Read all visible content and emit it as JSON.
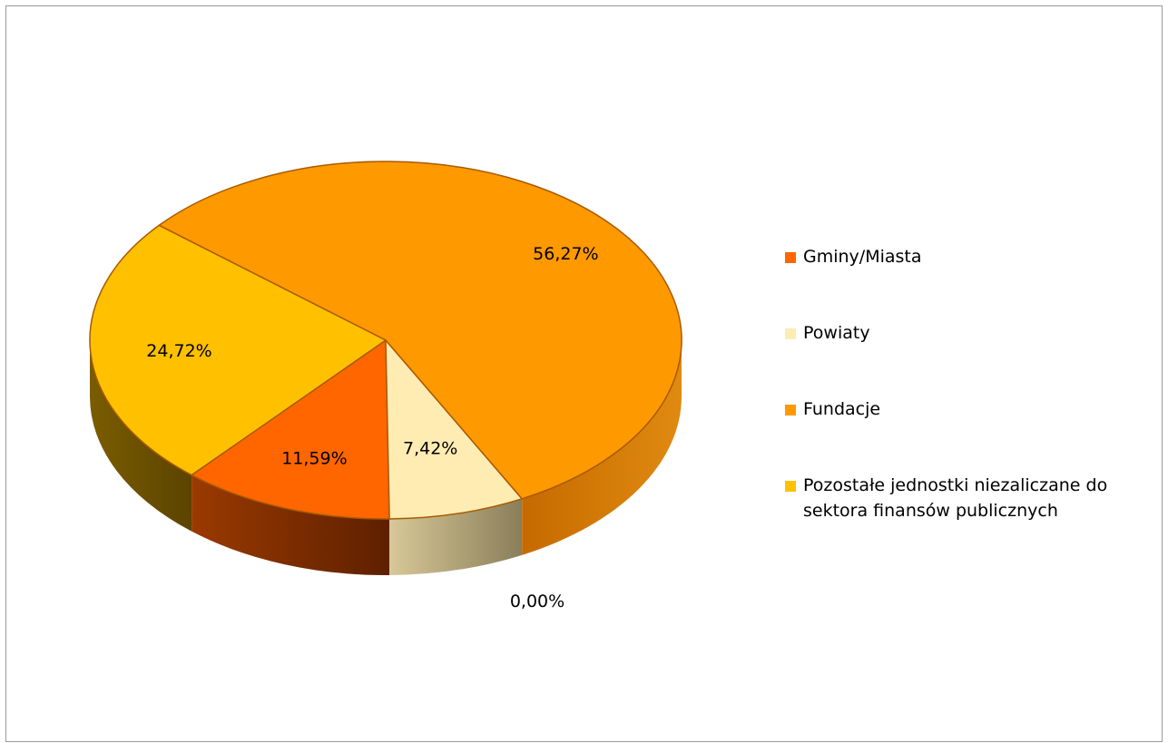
{
  "chart_data": {
    "type": "pie",
    "categories": [
      "Gminy/Miasta",
      "Powiaty",
      "Fundacje",
      "Pozostałe jednostki niezaliczane do sektora finansów publicznych",
      ""
    ],
    "values": [
      11.59,
      7.42,
      56.27,
      24.72,
      0.0
    ],
    "labels": [
      "11,59%",
      "7,42%",
      "56,27%",
      "24,72%",
      "0,00%"
    ],
    "colors": [
      "#ff6600",
      "#ffecb3",
      "#ff9900",
      "#ffc000"
    ],
    "style": "3d",
    "legend": {
      "placement": "right",
      "items": [
        {
          "label": "Gminy/Miasta",
          "color": "#ff6600"
        },
        {
          "label": "Powiaty",
          "color": "#ffecb3"
        },
        {
          "label": "Fundacje",
          "color": "#ff9900"
        },
        {
          "label": "Pozostałe jednostki niezaliczane do sektora finansów publicznych",
          "color": "#ffc000"
        }
      ]
    }
  }
}
